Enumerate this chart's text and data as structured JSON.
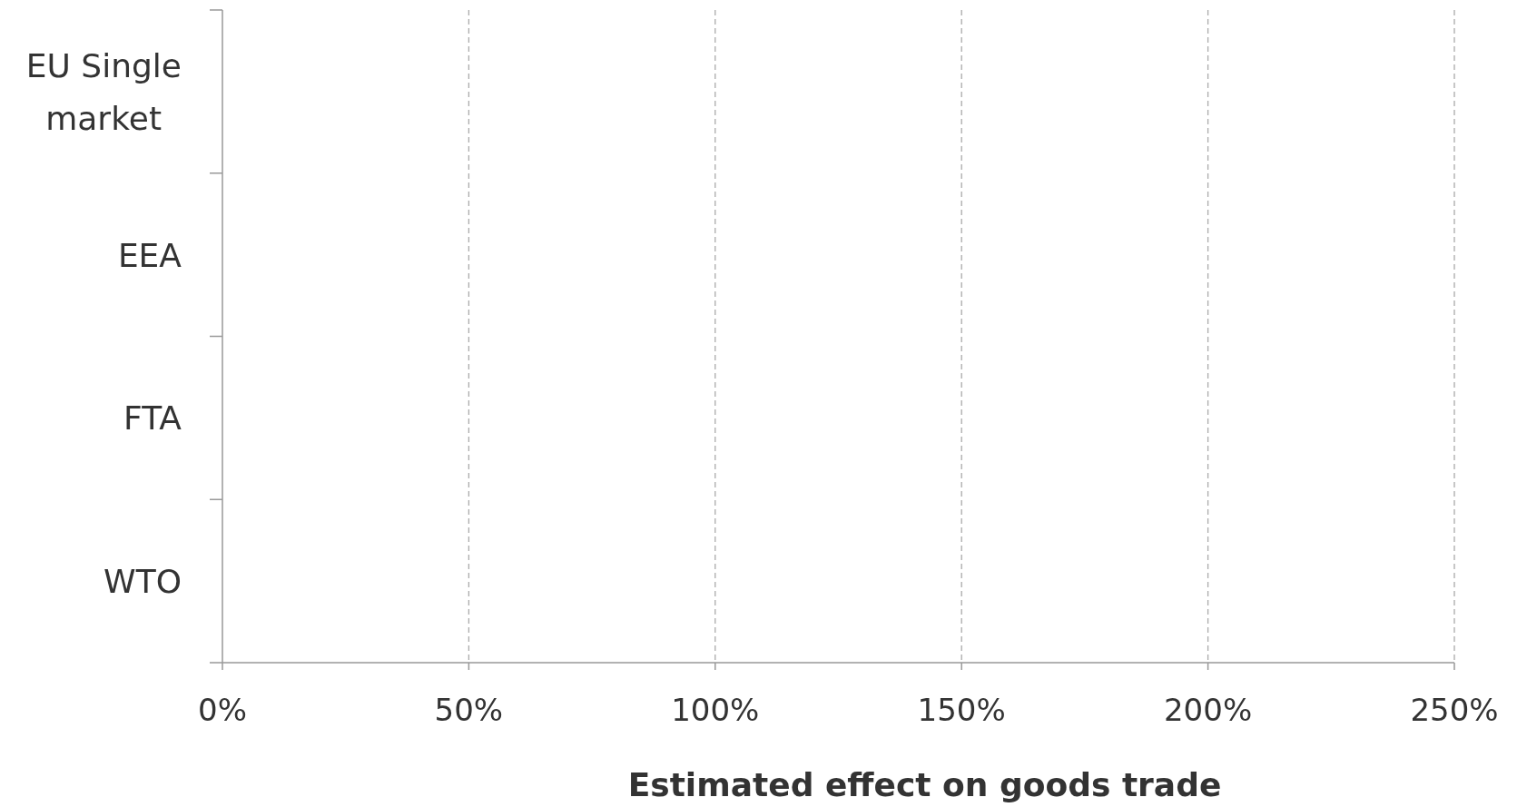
{
  "chart_data": {
    "type": "bar",
    "orientation": "horizontal",
    "categories": [
      "EU Single market",
      "EEA",
      "FTA",
      "WTO"
    ],
    "values": [
      null,
      null,
      null,
      null
    ],
    "xlim": [
      0,
      2.5
    ],
    "xticks": [
      {
        "value": 0,
        "label": "0%"
      },
      {
        "value": 0.5,
        "label": "50%"
      },
      {
        "value": 1,
        "label": "100%"
      },
      {
        "value": 1.5,
        "label": "150%"
      },
      {
        "value": 2,
        "label": "200%"
      },
      {
        "value": 2.5,
        "label": "250%"
      }
    ],
    "xlabel": "Estimated effect on goods trade",
    "grid": "x"
  }
}
